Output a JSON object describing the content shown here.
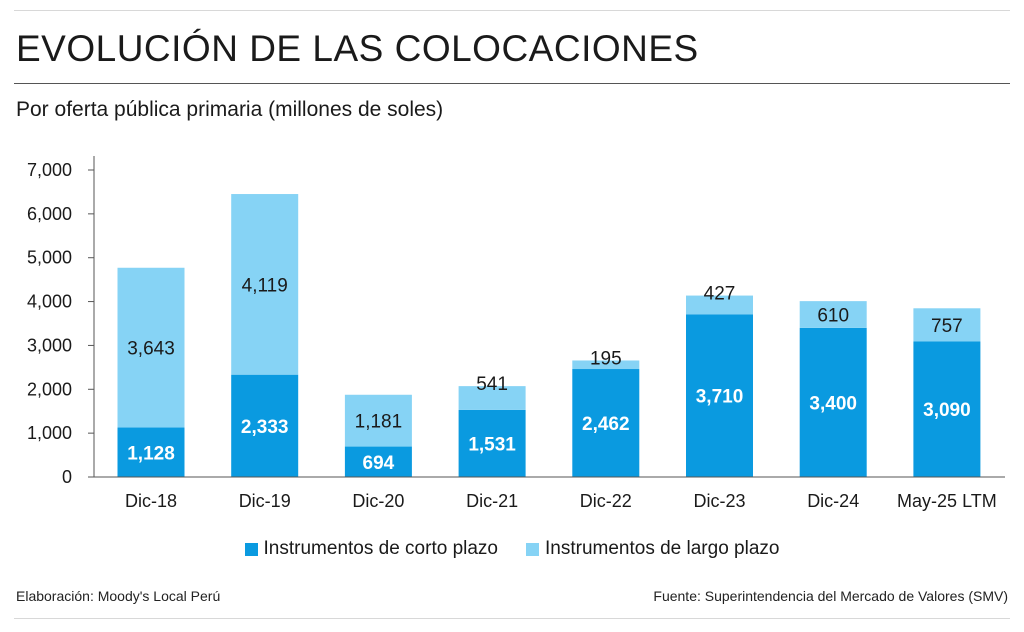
{
  "header": {
    "title": "EVOLUCIÓN DE LAS COLOCACIONES",
    "subtitle": "Por oferta pública primaria (millones de soles)"
  },
  "chart_data": {
    "type": "bar",
    "stacked": true,
    "categories": [
      "Dic-18",
      "Dic-19",
      "Dic-20",
      "Dic-21",
      "Dic-22",
      "Dic-23",
      "Dic-24",
      "May-25 LTM"
    ],
    "series": [
      {
        "name": "Instrumentos de corto plazo",
        "values": [
          1128,
          2333,
          694,
          1531,
          2462,
          3710,
          3400,
          3090
        ],
        "labels": [
          "1,128",
          "2,333",
          "694",
          "1,531",
          "2,462",
          "3,710",
          "3,400",
          "3,090"
        ],
        "color": "#0a9ae0"
      },
      {
        "name": "Instrumentos de largo plazo",
        "values": [
          3643,
          4119,
          1181,
          541,
          195,
          427,
          610,
          757
        ],
        "labels": [
          "3,643",
          "4,119",
          "1,181",
          "541",
          "195",
          "427",
          "610",
          "757"
        ],
        "color": "#86d3f5"
      }
    ],
    "yticks": [
      "0",
      "1,000",
      "2,000",
      "3,000",
      "4,000",
      "5,000",
      "6,000",
      "7,000"
    ],
    "ytick_values": [
      0,
      1000,
      2000,
      3000,
      4000,
      5000,
      6000,
      7000
    ],
    "ylim": [
      0,
      7000
    ],
    "grid": false,
    "legend_position": "bottom-center"
  },
  "footer": {
    "left": "Elaboración: Moody's Local Perú",
    "right": "Fuente: Superintendencia del Mercado de Valores (SMV)"
  }
}
